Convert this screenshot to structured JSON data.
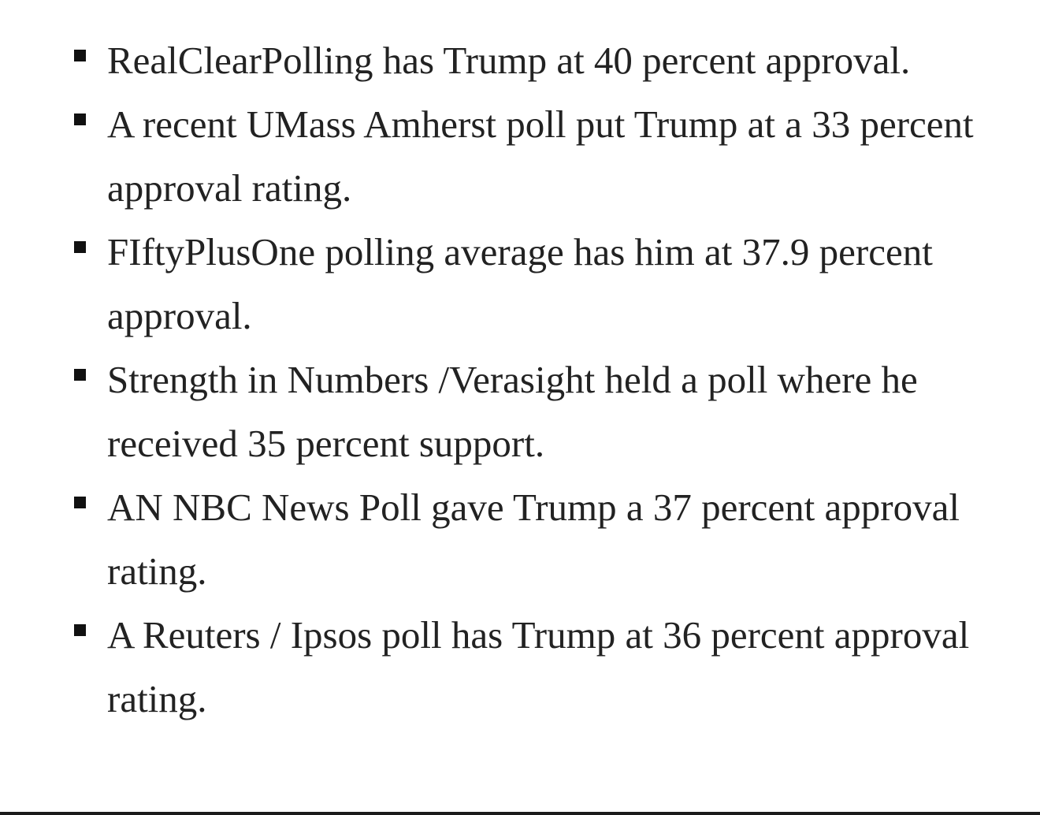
{
  "poll_items": [
    {
      "text": "RealClearPolling has Trump at 40 percent approval."
    },
    {
      "text": "A recent UMass Amherst poll put Trump at a 33 percent approval rating."
    },
    {
      "text": "FIftyPlusOne polling average has him at 37.9 percent approval."
    },
    {
      "text": "Strength in Numbers /Verasight held a poll where he received 35 percent support."
    },
    {
      "text": "AN NBC News Poll gave Trump a 37 percent approval rating."
    },
    {
      "text": "A Reuters / Ipsos poll has Trump at 36 percent approval rating."
    }
  ]
}
